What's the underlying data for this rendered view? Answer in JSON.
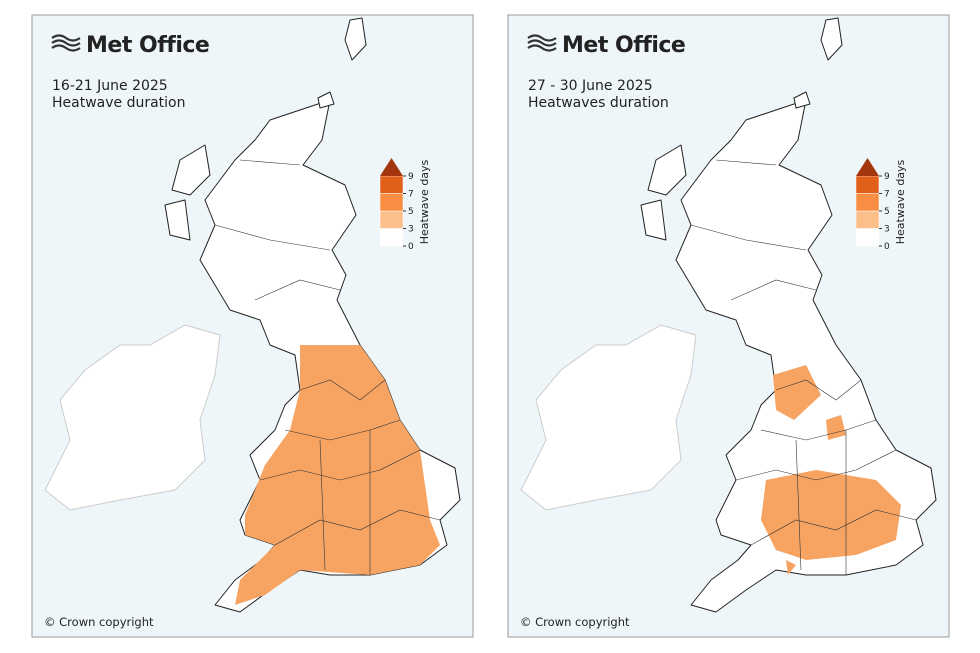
{
  "panels": [
    {
      "logo": "Met Office",
      "date": "16-21 June 2025",
      "title": "Heatwave duration",
      "legend": {
        "title": "Heatwave days",
        "ticks": [
          0,
          3,
          5,
          7,
          9
        ]
      },
      "copyright": "© Crown copyright"
    },
    {
      "logo": "Met Office",
      "date": "27 - 30 June 2025",
      "title": "Heatwaves duration",
      "legend": {
        "title": "Heatwave days",
        "ticks": [
          0,
          3,
          5,
          7,
          9
        ]
      },
      "copyright": "© Crown copyright"
    }
  ]
}
